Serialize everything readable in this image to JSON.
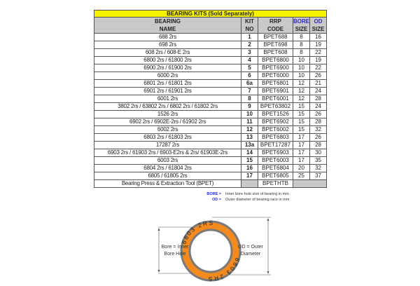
{
  "table": {
    "title": "BEARING KITS (Sold Separately)",
    "headers": {
      "name": [
        "BEARING",
        "NAME"
      ],
      "kit": [
        "KIT",
        "NO"
      ],
      "rrp": [
        "RRP",
        "CODE"
      ],
      "bore": [
        "BORE",
        "SIZE"
      ],
      "od": [
        "OD",
        "SIZE"
      ]
    },
    "rows": [
      {
        "name": "688 2rs",
        "kit": "1",
        "code": "BPET688",
        "bore": "8",
        "od": "16"
      },
      {
        "name": "698 2rs",
        "kit": "2",
        "code": "BPET698",
        "bore": "8",
        "od": "19"
      },
      {
        "name": "608 2rs / 608-E 2rs",
        "kit": "3",
        "code": "BPET608",
        "bore": "8",
        "od": "22"
      },
      {
        "name": "6800 2rs / 61800 2rs",
        "kit": "4",
        "code": "BPET6800",
        "bore": "10",
        "od": "19"
      },
      {
        "name": "6900 2rs / 61900 2rs",
        "kit": "5",
        "code": "BPET6900",
        "bore": "10",
        "od": "22"
      },
      {
        "name": "6000 2rs",
        "kit": "6",
        "code": "BPET6000",
        "bore": "10",
        "od": "26"
      },
      {
        "name": "6801 2rs / 61801 2rs",
        "kit": "6a",
        "code": "BPET6801",
        "bore": "12",
        "od": "21"
      },
      {
        "name": "6901 2rs / 61901 2rs",
        "kit": "7",
        "code": "BPET6901",
        "bore": "12",
        "od": "24"
      },
      {
        "name": "6001 2rs",
        "kit": "8",
        "code": "BPET6001",
        "bore": "12",
        "od": "28"
      },
      {
        "name": "3802 2rs / 63802 2rs / 6802 2rs / 61802 2rs",
        "kit": "9",
        "code": "BPET63802",
        "bore": "15",
        "od": "24"
      },
      {
        "name": "1526 2rs",
        "kit": "10",
        "code": "BPET1526",
        "bore": "15",
        "od": "26"
      },
      {
        "name": "6902 2rs / 6902E-2rs / 61902 2rs",
        "kit": "11",
        "code": "BPET6902",
        "bore": "15",
        "od": "28"
      },
      {
        "name": "6002 2rs",
        "kit": "12",
        "code": "BPET6002",
        "bore": "15",
        "od": "32"
      },
      {
        "name": "6803 2rs / 61803 2rs",
        "kit": "13",
        "code": "BPET6803",
        "bore": "17",
        "od": "26"
      },
      {
        "name": "17287 2rs",
        "kit": "13a",
        "code": "BPET17287",
        "bore": "17",
        "od": "28"
      },
      {
        "name": "6903 2rs / 61903 2rs / 6903-E2rs & 2rs/  61903E-2rs",
        "kit": "14",
        "code": "BPET6903",
        "bore": "17",
        "od": "30"
      },
      {
        "name": "6003 2rs",
        "kit": "15",
        "code": "BPET6003",
        "bore": "17",
        "od": "35"
      },
      {
        "name": "6804 2rs / 61804 2rs",
        "kit": "16",
        "code": "BPET6804",
        "bore": "20",
        "od": "32"
      },
      {
        "name": "6805 / 61805 2rs",
        "kit": "17",
        "code": "BPET6805",
        "bore": "25",
        "od": "37"
      }
    ],
    "tool_row": {
      "name": "Bearing Press & Extraction Tool (BPET)",
      "code": "BPETHTB"
    }
  },
  "legend": [
    {
      "key": "BORE =",
      "text": "Inner bore hole size of bearing in mm"
    },
    {
      "key": "OD =",
      "text": "Outer diameter of bearing race in mm"
    }
  ],
  "diagram": {
    "bore_label": [
      "Bore = Inner",
      "Bore Hole"
    ],
    "od_label": [
      "OD = Outer",
      "Diameter"
    ],
    "ring_text_top": "6803  2RS",
    "ring_text_bottom": "6803  2RS",
    "ring_color": "#f28a1e",
    "rim_color": "#7a7a7a"
  },
  "colors": {
    "title_bg": "#f7f300",
    "header_bg": "#c9c9c9",
    "accent": "#2a2ad8"
  }
}
